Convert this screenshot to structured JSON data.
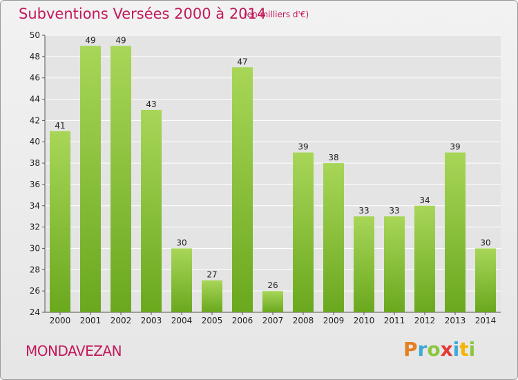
{
  "header": {
    "title": "Subventions Versées 2000 à 2014",
    "unit": "(en milliers d'€)"
  },
  "footer": {
    "commune": "MONDAVEZAN",
    "logo": [
      "P",
      "r",
      "o",
      "x",
      "i",
      "t",
      "i"
    ]
  },
  "colors": {
    "title": "#c2185b",
    "bar_light": "#a8d658",
    "bar_dark": "#6aa81e",
    "grid": "#ffffff",
    "plot_bg": "#e4e4e4"
  },
  "chart_data": {
    "type": "bar",
    "title": "Subventions Versées 2000 à 2014",
    "subtitle": "(en milliers d'€)",
    "xlabel": "",
    "ylabel": "",
    "ylim": [
      24,
      50
    ],
    "yticks": [
      24,
      26,
      28,
      30,
      32,
      34,
      36,
      38,
      40,
      42,
      44,
      46,
      48,
      50
    ],
    "grid": true,
    "categories": [
      "2000",
      "2001",
      "2002",
      "2003",
      "2004",
      "2005",
      "2006",
      "2007",
      "2008",
      "2009",
      "2010",
      "2011",
      "2012",
      "2013",
      "2014"
    ],
    "values": [
      41,
      49,
      49,
      43,
      30,
      27,
      47,
      26,
      39,
      38,
      33,
      33,
      34,
      39,
      30
    ]
  }
}
